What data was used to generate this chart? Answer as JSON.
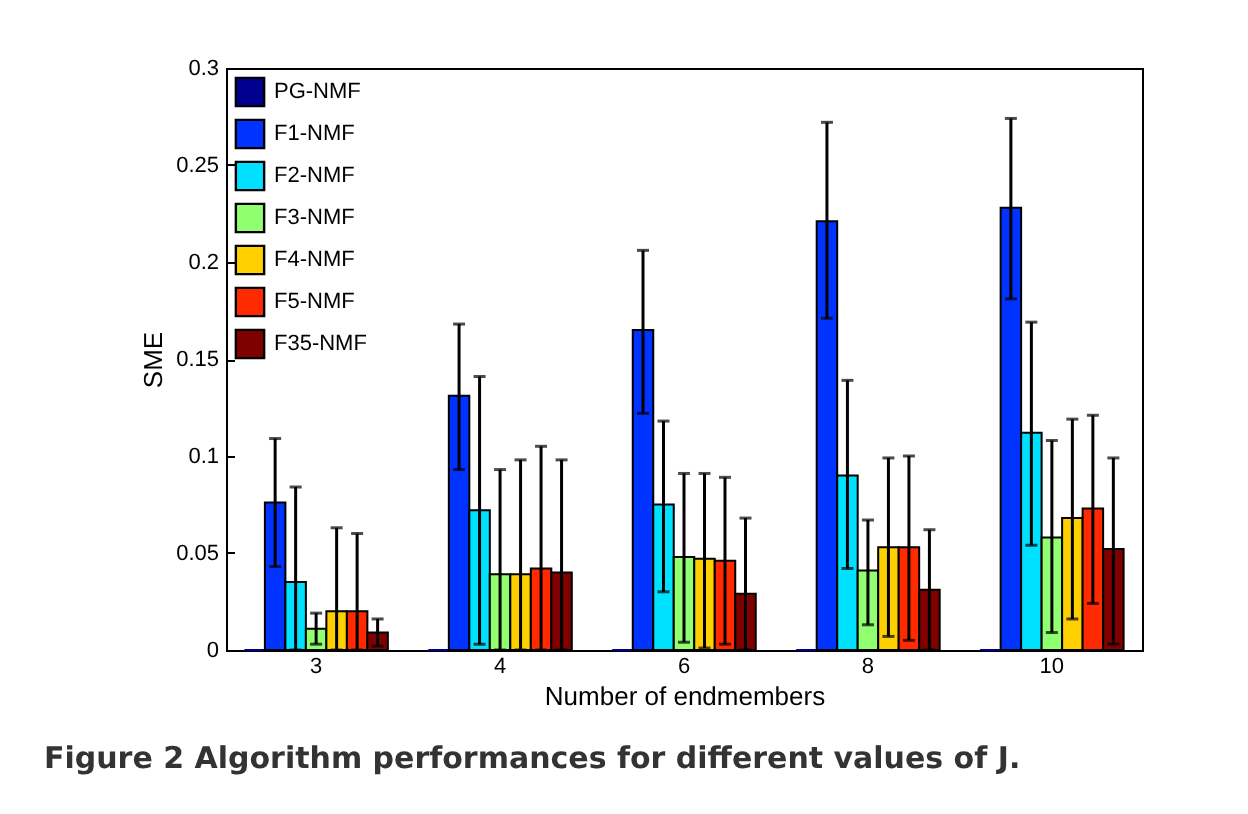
{
  "chart_data": {
    "type": "bar",
    "categories": [
      "3",
      "4",
      "6",
      "8",
      "10"
    ],
    "xlabel": "Number of endmembers",
    "ylabel": "SME",
    "ylim": [
      0,
      0.3
    ],
    "yticks": [
      0,
      0.05,
      0.1,
      0.15,
      0.2,
      0.25,
      0.3
    ],
    "legend": "top left",
    "grid": false,
    "annotations": [
      "Figure 2 Algorithm performances for different values of J."
    ],
    "series": [
      {
        "name": "PG-NMF",
        "color": "#00008f",
        "values": [
          0,
          0,
          0,
          0,
          0
        ]
      },
      {
        "name": "F1-NMF",
        "color": "#0033ff",
        "values": [
          0.076,
          0.131,
          0.165,
          0.221,
          0.228
        ],
        "errors": [
          [
            0.043,
            0.109
          ],
          [
            0.093,
            0.168
          ],
          [
            0.122,
            0.206
          ],
          [
            0.171,
            0.272
          ],
          [
            0.181,
            0.274
          ]
        ]
      },
      {
        "name": "F2-NMF",
        "color": "#00e0ff",
        "values": [
          0.035,
          0.072,
          0.075,
          0.09,
          0.112
        ],
        "errors": [
          [
            0,
            0.084
          ],
          [
            0.003,
            0.141
          ],
          [
            0.03,
            0.118
          ],
          [
            0.042,
            0.139
          ],
          [
            0.054,
            0.169
          ]
        ]
      },
      {
        "name": "F3-NMF",
        "color": "#90ff70",
        "values": [
          0.011,
          0.039,
          0.048,
          0.041,
          0.058
        ],
        "errors": [
          [
            0.003,
            0.019
          ],
          [
            0,
            0.093
          ],
          [
            0.004,
            0.091
          ],
          [
            0.013,
            0.067
          ],
          [
            0.009,
            0.108
          ]
        ]
      },
      {
        "name": "F4-NMF",
        "color": "#ffd000",
        "values": [
          0.02,
          0.039,
          0.047,
          0.053,
          0.068
        ],
        "errors": [
          [
            0,
            0.063
          ],
          [
            0,
            0.098
          ],
          [
            0.001,
            0.091
          ],
          [
            0.007,
            0.099
          ],
          [
            0.016,
            0.119
          ]
        ]
      },
      {
        "name": "F5-NMF",
        "color": "#ff2a00",
        "values": [
          0.02,
          0.042,
          0.046,
          0.053,
          0.073
        ],
        "errors": [
          [
            0,
            0.06
          ],
          [
            0,
            0.105
          ],
          [
            0.003,
            0.089
          ],
          [
            0.005,
            0.1
          ],
          [
            0.024,
            0.121
          ]
        ]
      },
      {
        "name": "F35-NMF",
        "color": "#800000",
        "values": [
          0.009,
          0.04,
          0.029,
          0.031,
          0.052
        ],
        "errors": [
          [
            0.002,
            0.016
          ],
          [
            0,
            0.098
          ],
          [
            0,
            0.068
          ],
          [
            0,
            0.062
          ],
          [
            0.003,
            0.099
          ]
        ]
      }
    ]
  }
}
